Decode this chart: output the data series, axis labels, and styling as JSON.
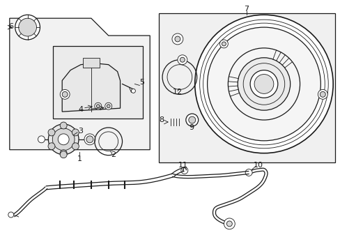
{
  "bg_color": "#ffffff",
  "line_color": "#1a1a1a",
  "gray_fill": "#e0e0e0",
  "light_gray": "#c8c8c8"
}
